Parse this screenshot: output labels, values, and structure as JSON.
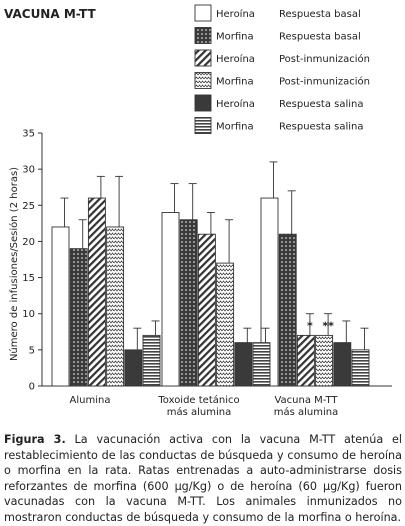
{
  "chart_data": {
    "type": "bar",
    "title": "VACUNA M-TT",
    "ylabel": "Número de infusiones/Sesión (2 horas)",
    "xlabel": "",
    "ylim": [
      0,
      35
    ],
    "yticks": [
      0,
      5,
      10,
      15,
      20,
      25,
      30,
      35
    ],
    "categories": [
      [
        "Alumina"
      ],
      [
        "Toxoide tetánico",
        "más alumina"
      ],
      [
        "Vacuna M-TT",
        "más alumina"
      ]
    ],
    "legend_position": "top-right",
    "series": [
      {
        "drug": "Heroína",
        "condition": "Respuesta basal",
        "pattern": "white",
        "values": [
          22,
          24,
          26
        ],
        "errors": [
          4,
          4,
          5
        ]
      },
      {
        "drug": "Morfina",
        "condition": "Respuesta basal",
        "pattern": "dots",
        "values": [
          19,
          23,
          21
        ],
        "errors": [
          4,
          5,
          6
        ]
      },
      {
        "drug": "Heroína",
        "condition": "Post-inmunización",
        "pattern": "diagonal",
        "values": [
          26,
          21,
          7
        ],
        "errors": [
          3,
          3,
          3
        ]
      },
      {
        "drug": "Morfina",
        "condition": "Post-inmunización",
        "pattern": "zigzag",
        "values": [
          22,
          17,
          7
        ],
        "errors": [
          7,
          6,
          3
        ]
      },
      {
        "drug": "Heroína",
        "condition": "Respuesta salina",
        "pattern": "black",
        "values": [
          5,
          6,
          6
        ],
        "errors": [
          3,
          2,
          3
        ]
      },
      {
        "drug": "Morfina",
        "condition": "Respuesta salina",
        "pattern": "horizontal",
        "values": [
          7,
          6,
          5
        ],
        "errors": [
          2,
          2,
          3
        ]
      }
    ],
    "annotations": [
      {
        "text": "*",
        "category": 2,
        "series": 2
      },
      {
        "text": "**",
        "category": 2,
        "series": 3
      }
    ]
  },
  "caption": {
    "label": "Figura 3.",
    "text": "La vacunación activa con la vacuna M-TT atenúa el restablecimiento de las conductas de búsqueda y consumo de heroína o morfina en la rata. Ratas entrenadas a auto-administrarse dosis reforzantes de morfina (600 µg/Kg) o de heroína (60 µg/Kg) fueron vacunadas con la vacuna M-TT. Los animales inmunizados no mostraron conductas de búsqueda y consumo de la morfina o heroína."
  }
}
